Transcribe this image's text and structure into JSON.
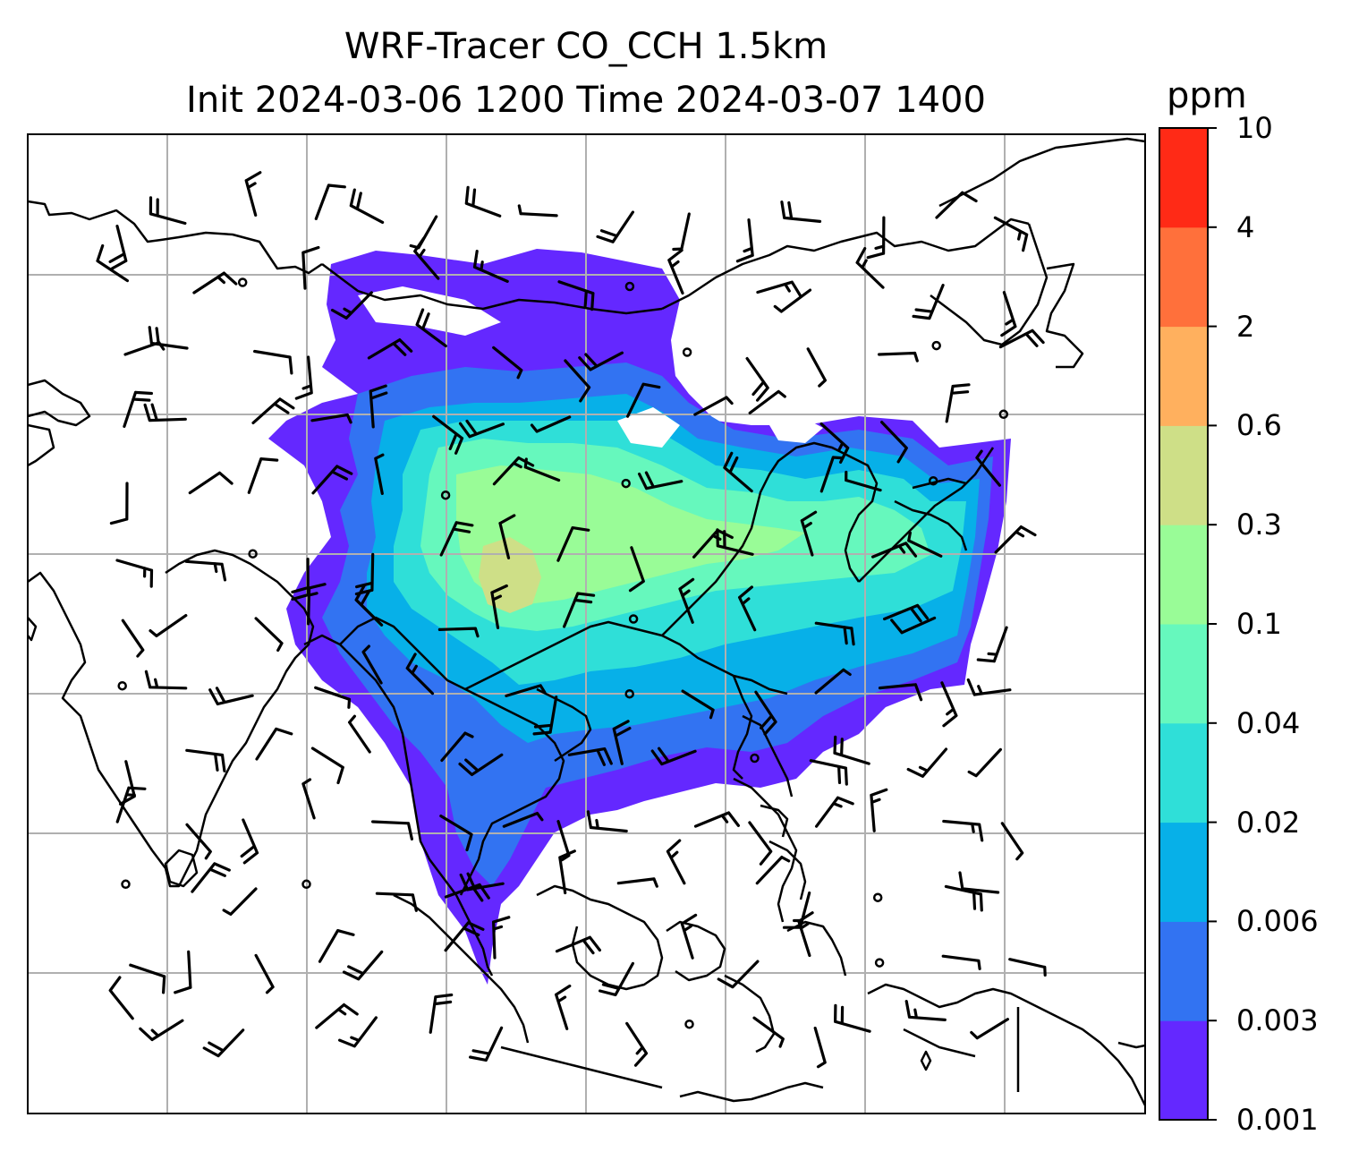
{
  "title": {
    "line1": "WRF-Tracer CO_CCH 1.5km",
    "line2": "Init 2024-03-06 1200 Time 2024-03-07 1400"
  },
  "colorbar": {
    "units": "ppm",
    "levels": [
      "0.001",
      "0.003",
      "0.006",
      "0.02",
      "0.04",
      "0.1",
      "0.3",
      "0.6",
      "2",
      "4",
      "10"
    ],
    "colors": [
      "#6428ff",
      "#3273f2",
      "#07b0e8",
      "#2fdfd8",
      "#66f8bd",
      "#99fc97",
      "#cedf87",
      "#ffb05e",
      "#ff703b",
      "#ff2a16"
    ]
  },
  "map": {
    "grid": "on",
    "coastlines": "on",
    "wind_barbs": "on",
    "land_color": "#ffffff"
  }
}
